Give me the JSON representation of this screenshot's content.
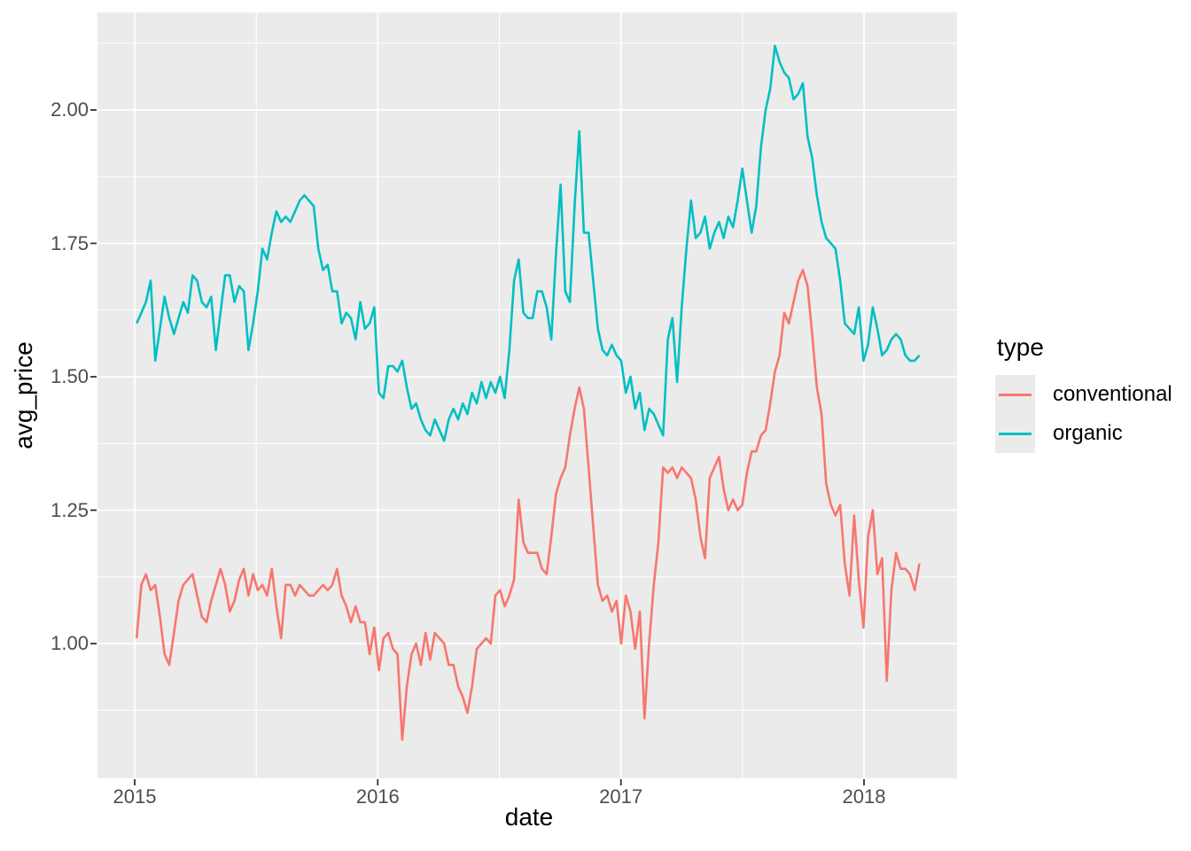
{
  "theme": {
    "outer_bg": "#FFFFFF",
    "panel_bg": "#EBEBEB",
    "grid_color": "#FFFFFF",
    "tick_mark_color": "#333333",
    "tick_text_color": "#4D4D4D",
    "title_text_color": "#000000",
    "conventional_color": "#F8766D",
    "organic_color": "#00BFC4"
  },
  "chart_data": {
    "type": "line",
    "title": "",
    "xlabel": "date",
    "ylabel": "avg_price",
    "grid": true,
    "x_tick_labels": [
      "2015",
      "2016",
      "2017",
      "2018"
    ],
    "x_tick_years": [
      2015,
      2016,
      2017,
      2018
    ],
    "x_minor_years": [
      2015.5,
      2016.5,
      2017.5
    ],
    "y_tick_labels": [
      "2.00",
      "1.75",
      "1.50",
      "1.25",
      "1.00"
    ],
    "y_tick_values": [
      2.0,
      1.75,
      1.5,
      1.25,
      1.0
    ],
    "y_minor_values": [
      2.125,
      1.875,
      1.625,
      1.375,
      1.125,
      0.875
    ],
    "ylim": [
      0.75,
      2.18
    ],
    "x_range_years": [
      2014.85,
      2018.38
    ],
    "x0_year": 2015.008,
    "x_step_year": 0.019165,
    "x_unit": "week",
    "legend": {
      "title": "type",
      "position": "right",
      "entries": [
        {
          "label": "conventional",
          "color": "#F8766D"
        },
        {
          "label": "organic",
          "color": "#00BFC4"
        }
      ]
    },
    "series": [
      {
        "name": "conventional",
        "color": "#F8766D",
        "values": [
          1.01,
          1.11,
          1.13,
          1.1,
          1.11,
          1.05,
          0.98,
          0.96,
          1.02,
          1.08,
          1.11,
          1.12,
          1.13,
          1.09,
          1.05,
          1.04,
          1.08,
          1.11,
          1.14,
          1.11,
          1.06,
          1.08,
          1.12,
          1.14,
          1.09,
          1.13,
          1.1,
          1.11,
          1.09,
          1.14,
          1.07,
          1.01,
          1.11,
          1.11,
          1.09,
          1.11,
          1.1,
          1.09,
          1.09,
          1.1,
          1.11,
          1.1,
          1.11,
          1.14,
          1.09,
          1.07,
          1.04,
          1.07,
          1.04,
          1.04,
          0.98,
          1.03,
          0.95,
          1.01,
          1.02,
          0.99,
          0.98,
          0.82,
          0.92,
          0.98,
          1.0,
          0.96,
          1.02,
          0.97,
          1.02,
          1.01,
          1.0,
          0.96,
          0.96,
          0.92,
          0.9,
          0.87,
          0.92,
          0.99,
          1.0,
          1.01,
          1.0,
          1.09,
          1.1,
          1.07,
          1.09,
          1.12,
          1.27,
          1.19,
          1.17,
          1.17,
          1.17,
          1.14,
          1.13,
          1.2,
          1.28,
          1.31,
          1.33,
          1.39,
          1.44,
          1.48,
          1.44,
          1.33,
          1.22,
          1.11,
          1.08,
          1.09,
          1.06,
          1.08,
          1.0,
          1.09,
          1.06,
          0.99,
          1.06,
          0.86,
          1.0,
          1.11,
          1.19,
          1.33,
          1.32,
          1.33,
          1.31,
          1.33,
          1.32,
          1.31,
          1.27,
          1.2,
          1.16,
          1.31,
          1.33,
          1.35,
          1.29,
          1.25,
          1.27,
          1.25,
          1.26,
          1.32,
          1.36,
          1.36,
          1.39,
          1.4,
          1.45,
          1.51,
          1.54,
          1.62,
          1.6,
          1.64,
          1.68,
          1.7,
          1.67,
          1.58,
          1.48,
          1.43,
          1.3,
          1.26,
          1.24,
          1.26,
          1.15,
          1.09,
          1.24,
          1.12,
          1.03,
          1.2,
          1.25,
          1.13,
          1.16,
          0.93,
          1.1,
          1.17,
          1.14,
          1.14,
          1.13,
          1.1,
          1.15
        ]
      },
      {
        "name": "organic",
        "color": "#00BFC4",
        "values": [
          1.6,
          1.62,
          1.64,
          1.68,
          1.53,
          1.59,
          1.65,
          1.61,
          1.58,
          1.61,
          1.64,
          1.62,
          1.69,
          1.68,
          1.64,
          1.63,
          1.65,
          1.55,
          1.62,
          1.69,
          1.69,
          1.64,
          1.67,
          1.66,
          1.55,
          1.6,
          1.66,
          1.74,
          1.72,
          1.77,
          1.81,
          1.79,
          1.8,
          1.79,
          1.81,
          1.83,
          1.84,
          1.83,
          1.82,
          1.74,
          1.7,
          1.71,
          1.66,
          1.66,
          1.6,
          1.62,
          1.61,
          1.57,
          1.64,
          1.59,
          1.6,
          1.63,
          1.47,
          1.46,
          1.52,
          1.52,
          1.51,
          1.53,
          1.48,
          1.44,
          1.45,
          1.42,
          1.4,
          1.39,
          1.42,
          1.4,
          1.38,
          1.42,
          1.44,
          1.42,
          1.45,
          1.43,
          1.47,
          1.45,
          1.49,
          1.46,
          1.49,
          1.47,
          1.5,
          1.46,
          1.55,
          1.68,
          1.72,
          1.62,
          1.61,
          1.61,
          1.66,
          1.66,
          1.63,
          1.57,
          1.73,
          1.86,
          1.66,
          1.64,
          1.82,
          1.96,
          1.77,
          1.77,
          1.68,
          1.59,
          1.55,
          1.54,
          1.56,
          1.54,
          1.53,
          1.47,
          1.5,
          1.44,
          1.47,
          1.4,
          1.44,
          1.43,
          1.41,
          1.39,
          1.57,
          1.61,
          1.49,
          1.63,
          1.74,
          1.83,
          1.76,
          1.77,
          1.8,
          1.74,
          1.77,
          1.79,
          1.76,
          1.8,
          1.78,
          1.83,
          1.89,
          1.83,
          1.77,
          1.82,
          1.93,
          2.0,
          2.04,
          2.12,
          2.09,
          2.07,
          2.06,
          2.02,
          2.03,
          2.05,
          1.95,
          1.91,
          1.84,
          1.79,
          1.76,
          1.75,
          1.74,
          1.68,
          1.6,
          1.59,
          1.58,
          1.63,
          1.53,
          1.56,
          1.63,
          1.59,
          1.54,
          1.55,
          1.57,
          1.58,
          1.57,
          1.54,
          1.53,
          1.53,
          1.54
        ]
      }
    ]
  }
}
